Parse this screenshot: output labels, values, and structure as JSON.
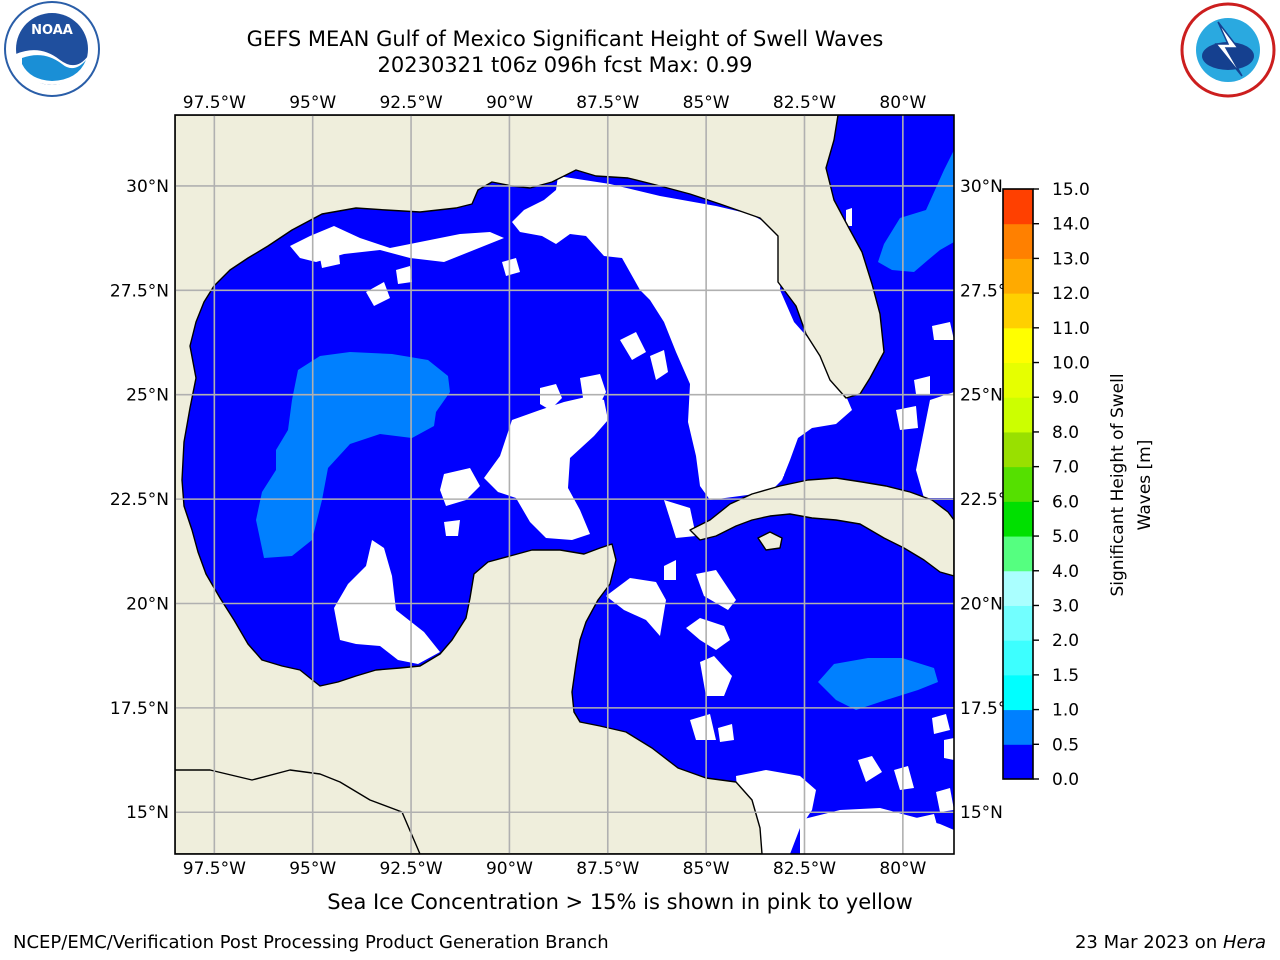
{
  "title_line1": "GEFS MEAN Gulf of Mexico Significant Height of Swell Waves",
  "title_line2": "20230321 t06z 096h fcst   Max: 0.99",
  "footer_note": "Sea Ice Concentration > 15% is shown in pink to yellow",
  "credit": "NCEP/EMC/Verification Post Processing Product Generation Branch",
  "date_text": "23 Mar 2023 on ",
  "machine": "Hera",
  "logos": {
    "left": "noaa-logo",
    "right": "nws-logo"
  },
  "map": {
    "lon_range": [
      -98.5,
      -78.7
    ],
    "lat_range": [
      14.0,
      31.7
    ],
    "lon_ticks": [
      {
        "value": -97.5,
        "label": "97.5°W"
      },
      {
        "value": -95,
        "label": "95°W"
      },
      {
        "value": -92.5,
        "label": "92.5°W"
      },
      {
        "value": -90,
        "label": "90°W"
      },
      {
        "value": -87.5,
        "label": "87.5°W"
      },
      {
        "value": -85,
        "label": "85°W"
      },
      {
        "value": -82.5,
        "label": "82.5°W"
      },
      {
        "value": -80,
        "label": "80°W"
      }
    ],
    "lat_ticks": [
      {
        "value": 30,
        "label": "30°N"
      },
      {
        "value": 27.5,
        "label": "27.5°N"
      },
      {
        "value": 25,
        "label": "25°N"
      },
      {
        "value": 22.5,
        "label": "22.5°N"
      },
      {
        "value": 20,
        "label": "20°N"
      },
      {
        "value": 17.5,
        "label": "17.5°N"
      },
      {
        "value": 15,
        "label": "15°N"
      }
    ],
    "colors": {
      "land": "#efeedc",
      "ocean_low": "#0000ff",
      "ocean_mid": "#0080ff",
      "grid": "#b0b0b0"
    }
  },
  "colorbar": {
    "label_line1": "Significant Height of Swell",
    "label_line2": "Waves [m]",
    "levels": [
      0.0,
      0.5,
      1.0,
      1.5,
      2.0,
      3.0,
      4.0,
      5.0,
      6.0,
      7.0,
      8.0,
      9.0,
      10.0,
      11.0,
      12.0,
      13.0,
      14.0,
      15.0
    ],
    "tick_labels": [
      "0.0",
      "0.5",
      "1.0",
      "1.5",
      "2.0",
      "3.0",
      "4.0",
      "5.0",
      "6.0",
      "7.0",
      "8.0",
      "9.0",
      "10.0",
      "11.0",
      "12.0",
      "13.0",
      "14.0",
      "15.0"
    ],
    "colors": [
      "#0000ff",
      "#0080ff",
      "#00ffff",
      "#3dffff",
      "#72ffff",
      "#aaffff",
      "#55ff80",
      "#00e000",
      "#55e000",
      "#99e000",
      "#ccff00",
      "#e6ff00",
      "#ffff00",
      "#ffd000",
      "#ffaa00",
      "#ff8000",
      "#ff4000",
      "#ff1000"
    ]
  }
}
